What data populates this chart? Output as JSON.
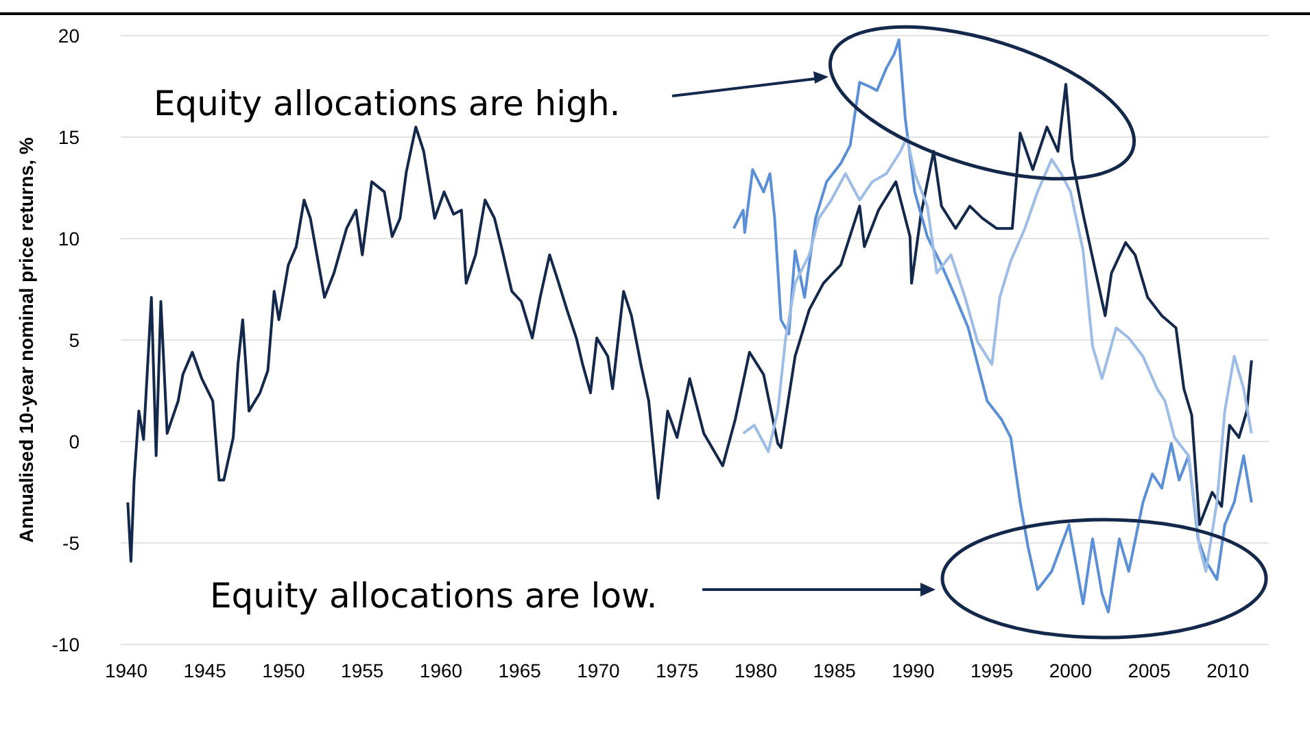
{
  "chart_data": {
    "type": "line",
    "ylabel": "Annualised 10-year nominal price returns, %",
    "annotations": [
      "Equity allocations are high.",
      "Equity allocations are low."
    ],
    "xlim": [
      1939.65,
      2012.6
    ],
    "xticks": [
      1940,
      1945,
      1950,
      1955,
      1960,
      1965,
      1970,
      1975,
      1980,
      1985,
      1990,
      1995,
      2000,
      2005,
      2010
    ],
    "ylim": [
      -10,
      20
    ],
    "yticks": [
      -10,
      -5,
      0,
      5,
      10,
      15,
      20
    ],
    "grid": "y",
    "line_style": "solid",
    "series": [
      {
        "color": "#14284b",
        "x": [
          1940.1,
          1940.3,
          1940.5,
          1940.8,
          1941.1,
          1941.6,
          1941.9,
          1942.2,
          1942.6,
          1943.3,
          1943.6,
          1944.2,
          1944.8,
          1945.5,
          1945.9,
          1946.2,
          1946.8,
          1947.1,
          1947.4,
          1947.8,
          1948.5,
          1949,
          1949.4,
          1949.7,
          1950.3,
          1950.8,
          1951.3,
          1951.7,
          1952.6,
          1953.2,
          1954,
          1954.6,
          1955,
          1955.6,
          1956.4,
          1956.9,
          1957.4,
          1957.8,
          1958.4,
          1958.9,
          1959.6,
          1960.2,
          1960.8,
          1961.3,
          1961.6,
          1962.2,
          1962.8,
          1963.4,
          1963.9,
          1964.5,
          1965.1,
          1965.8,
          1966.3,
          1966.9,
          1967.4,
          1968,
          1968.6,
          1969,
          1969.5,
          1969.9,
          1970.6,
          1970.9,
          1971.6,
          1972.1,
          1972.7,
          1973.2,
          1973.8,
          1974.4,
          1975,
          1975.8,
          1976.7,
          1977.9,
          1978.7,
          1979.6,
          1980.5,
          1981.4,
          1981.6,
          1982.5,
          1983.4,
          1984.3,
          1985.4,
          1986.6,
          1986.9,
          1987.8,
          1988.9,
          1989.8,
          1989.9,
          1990.5,
          1991.3,
          1991.8,
          1992.7,
          1993.6,
          1994.4,
          1995.3,
          1996.3,
          1996.8,
          1997.6,
          1998.5,
          1999.2,
          1999.7,
          2000.1,
          2000.8,
          2002.2,
          2002.6,
          2003.5,
          2004.1,
          2004.9,
          2005.8,
          2006.7,
          2007.2,
          2007.7,
          2008.2,
          2009,
          2009.6,
          2010.1,
          2010.7,
          2011.2,
          2011.5
        ],
        "values": [
          -3,
          -5.9,
          -1.9,
          1.5,
          0.1,
          7.1,
          -0.7,
          6.9,
          0.4,
          2,
          3.3,
          4.4,
          3.1,
          2,
          -1.9,
          -1.9,
          0.2,
          3.8,
          6,
          1.5,
          2.4,
          3.5,
          7.4,
          6,
          8.7,
          9.6,
          11.9,
          11,
          7.1,
          8.3,
          10.5,
          11.4,
          9.2,
          12.8,
          12.3,
          10.1,
          11,
          13.3,
          15.5,
          14.3,
          11,
          12.3,
          11.2,
          11.4,
          7.8,
          9.2,
          11.9,
          11,
          9.4,
          7.4,
          6.9,
          5.1,
          7.1,
          9.2,
          8,
          6.5,
          5.1,
          3.8,
          2.4,
          5.1,
          4.2,
          2.6,
          7.4,
          6.2,
          3.8,
          2,
          -2.8,
          1.5,
          0.2,
          3.1,
          0.4,
          -1.2,
          1.1,
          4.4,
          3.3,
          -0.1,
          -0.3,
          4.2,
          6.5,
          7.8,
          8.7,
          11.6,
          9.6,
          11.4,
          12.8,
          10.1,
          7.8,
          11.2,
          14.3,
          11.6,
          10.5,
          11.6,
          11,
          10.5,
          10.5,
          15.2,
          13.4,
          15.5,
          14.3,
          17.6,
          13.9,
          11.2,
          6.2,
          8.3,
          9.8,
          9.2,
          7.1,
          6.2,
          5.6,
          2.6,
          1.3,
          -4.1,
          -2.5,
          -3.2,
          0.8,
          0.2,
          1.5,
          4
        ]
      },
      {
        "color": "#5b8fd6",
        "x": [
          1978.6,
          1979.2,
          1979.3,
          1979.8,
          1980.5,
          1980.9,
          1981.2,
          1981.6,
          1982.1,
          1982.5,
          1983.1,
          1983.8,
          1984.5,
          1985.4,
          1986,
          1986.6,
          1987.2,
          1987.7,
          1988.3,
          1988.8,
          1989.1,
          1989.5,
          1990.1,
          1990.9,
          1991.8,
          1992.7,
          1993.5,
          1994.1,
          1994.7,
          1995.6,
          1996.2,
          1996.8,
          1997.3,
          1997.9,
          1998.8,
          1999.9,
          2000.8,
          2001.4,
          2002,
          2002.4,
          2003.1,
          2003.7,
          2004.6,
          2005.2,
          2005.8,
          2006.4,
          2006.9,
          2007.5,
          2008.1,
          2008.6,
          2009.3,
          2009.8,
          2010.4,
          2011,
          2011.5
        ],
        "values": [
          10.5,
          11.4,
          10.3,
          13.4,
          12.3,
          13.2,
          11,
          6,
          5.3,
          9.4,
          7.1,
          11,
          12.8,
          13.7,
          14.6,
          17.7,
          17.5,
          17.3,
          18.4,
          19.1,
          19.8,
          15.9,
          12.3,
          10.1,
          8.7,
          7.1,
          5.6,
          3.8,
          2,
          1.1,
          0.2,
          -3,
          -5.2,
          -7.3,
          -6.4,
          -4.1,
          -8,
          -4.8,
          -7.5,
          -8.4,
          -4.8,
          -6.4,
          -3,
          -1.6,
          -2.3,
          -0.1,
          -1.9,
          -0.7,
          -4.8,
          -5.9,
          -6.8,
          -4.1,
          -3,
          -0.7,
          -3
        ]
      },
      {
        "color": "#9dbde6",
        "x": [
          1979.2,
          1979.9,
          1980.8,
          1981.4,
          1981.9,
          1982.5,
          1983.4,
          1984,
          1984.8,
          1985.7,
          1986.6,
          1987.4,
          1988.3,
          1989.2,
          1989.6,
          1990.1,
          1990.9,
          1991.5,
          1992.4,
          1993.3,
          1994.1,
          1995,
          1995.5,
          1996.2,
          1997.1,
          1997.9,
          1998.8,
          1999.4,
          2000,
          2000.8,
          2001.4,
          2002,
          2002.9,
          2003.7,
          2004.6,
          2005.5,
          2006,
          2006.6,
          2007.5,
          2008.2,
          2008.6,
          2009.3,
          2009.8,
          2010.4,
          2011,
          2011.5
        ],
        "values": [
          0.4,
          0.8,
          -0.5,
          1.5,
          5.1,
          7.8,
          9.2,
          11,
          11.9,
          13.2,
          11.9,
          12.8,
          13.2,
          14.3,
          15,
          13.2,
          11.6,
          8.3,
          9.2,
          7.1,
          4.9,
          3.8,
          7.1,
          8.9,
          10.5,
          12.3,
          13.9,
          13.2,
          12.3,
          9.4,
          4.7,
          3.1,
          5.6,
          5.1,
          4.2,
          2.6,
          2,
          0.2,
          -0.7,
          -5.2,
          -6.4,
          -3,
          1.5,
          4.2,
          2.6,
          0.4
        ]
      }
    ]
  }
}
